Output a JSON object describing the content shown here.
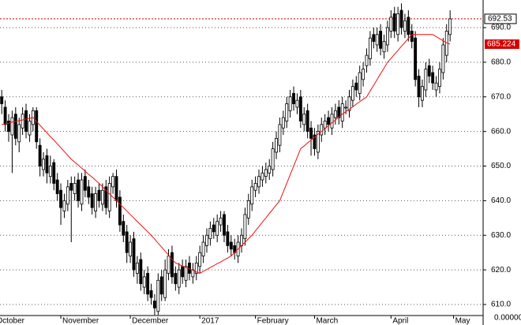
{
  "chart_data": {
    "type": "candlestick",
    "xlim": [
      -0.5,
      138.5
    ],
    "xticks": [
      {
        "value": -2,
        "label": "October"
      },
      {
        "value": 17,
        "label": "November"
      },
      {
        "value": 37,
        "label": "December"
      },
      {
        "value": 57,
        "label": "2017"
      },
      {
        "value": 73,
        "label": "February"
      },
      {
        "value": 90,
        "label": "March"
      },
      {
        "value": 112,
        "label": "April"
      },
      {
        "value": 130,
        "label": "May"
      }
    ],
    "ylim": [
      607.95,
      697.98
    ],
    "yticks": [
      {
        "value": 610,
        "label": "610.0"
      },
      {
        "value": 620,
        "label": "620.0"
      },
      {
        "value": 630,
        "label": "630.0"
      },
      {
        "value": 640,
        "label": "640.0"
      },
      {
        "value": 650,
        "label": "650.0"
      },
      {
        "value": 660,
        "label": "660.0"
      },
      {
        "value": 670,
        "label": "670.0"
      },
      {
        "value": 680,
        "label": "680.0"
      },
      {
        "value": 690,
        "label": "690.0"
      }
    ],
    "volume_ticks": [
      {
        "value": 0,
        "label": "0.00000"
      }
    ],
    "grid": true,
    "last_price_color": "#cc0000",
    "open": [
      670,
      667,
      663,
      659,
      665,
      657,
      661,
      666,
      659,
      662,
      666,
      656,
      649,
      653,
      647,
      651,
      646,
      643,
      637,
      639,
      645,
      642,
      646,
      639,
      647,
      644,
      642,
      637,
      643,
      639,
      644,
      637,
      644,
      647,
      641,
      634,
      631,
      624,
      629,
      619,
      623,
      615,
      619,
      614,
      611,
      608,
      618,
      612,
      619,
      625,
      619,
      615,
      621,
      617,
      622,
      618,
      619,
      621,
      624,
      627,
      629,
      633,
      630,
      633,
      636,
      631,
      628,
      627,
      624,
      627,
      629,
      635,
      639,
      643,
      644,
      646,
      647,
      648,
      649,
      654,
      656,
      661,
      663,
      666,
      671,
      667,
      670,
      662,
      666,
      661,
      659,
      654,
      659,
      661,
      664,
      661,
      664,
      667,
      663,
      667,
      666,
      669,
      674,
      671,
      675,
      679,
      681,
      688,
      685,
      689,
      683,
      685,
      689,
      694,
      688,
      695,
      689,
      693,
      689,
      687,
      676,
      669,
      672,
      679,
      677,
      672,
      673,
      677,
      682,
      688
    ],
    "high": [
      672,
      669,
      665,
      666,
      667,
      664,
      667,
      668,
      665,
      667,
      667,
      658,
      654,
      655,
      653,
      652,
      648,
      645,
      642,
      646,
      647,
      647,
      648,
      648,
      649,
      646,
      644,
      644,
      645,
      645,
      646,
      647,
      648,
      649,
      643,
      636,
      633,
      630,
      631,
      624,
      625,
      620,
      621,
      616,
      613,
      619,
      620,
      623,
      626,
      627,
      621,
      622,
      623,
      623,
      624,
      622,
      624,
      627,
      630,
      632,
      634,
      635,
      636,
      637,
      637,
      633,
      630,
      629,
      630,
      632,
      638,
      642,
      646,
      647,
      649,
      650,
      651,
      652,
      657,
      660,
      664,
      666,
      670,
      672,
      673,
      671,
      672,
      667,
      668,
      663,
      661,
      662,
      664,
      665,
      666,
      667,
      668,
      669,
      670,
      669,
      672,
      675,
      676,
      679,
      680,
      684,
      689,
      690,
      690,
      691,
      688,
      692,
      695,
      696,
      696,
      697,
      694,
      695,
      691,
      689,
      678,
      675,
      680,
      681,
      679,
      676,
      680,
      687,
      691,
      695
    ],
    "low": [
      665,
      660,
      657,
      648,
      656,
      654,
      659,
      658,
      657,
      660,
      655,
      647,
      647,
      645,
      645,
      643,
      640,
      633,
      635,
      637,
      628,
      640,
      638,
      637,
      641,
      639,
      636,
      635,
      638,
      637,
      636,
      635,
      642,
      638,
      631,
      628,
      622,
      622,
      618,
      616,
      614,
      613,
      611,
      610,
      607,
      607,
      611,
      611,
      617,
      616,
      614,
      613,
      616,
      615,
      617,
      616,
      617,
      619,
      622,
      625,
      627,
      629,
      628,
      631,
      628,
      625,
      624,
      623,
      622,
      625,
      627,
      633,
      637,
      641,
      642,
      644,
      645,
      646,
      647,
      652,
      654,
      659,
      661,
      664,
      666,
      665,
      661,
      660,
      658,
      653,
      653,
      652,
      657,
      659,
      660,
      659,
      662,
      662,
      661,
      665,
      664,
      667,
      670,
      669,
      673,
      677,
      679,
      684,
      683,
      682,
      681,
      683,
      687,
      687,
      686,
      688,
      687,
      686,
      684,
      673,
      667,
      667,
      670,
      674,
      672,
      670,
      671,
      675,
      680,
      686
    ],
    "close": [
      668,
      662,
      660,
      664,
      658,
      662,
      665,
      660,
      663,
      666,
      657,
      650,
      652,
      648,
      650,
      645,
      642,
      638,
      640,
      644,
      643,
      645,
      640,
      646,
      643,
      641,
      638,
      642,
      640,
      643,
      638,
      645,
      647,
      640,
      633,
      630,
      625,
      628,
      620,
      622,
      616,
      618,
      613,
      612,
      609,
      617,
      613,
      620,
      624,
      618,
      616,
      620,
      618,
      621,
      619,
      620,
      622,
      625,
      628,
      630,
      632,
      631,
      634,
      635,
      630,
      627,
      626,
      625,
      628,
      630,
      636,
      640,
      644,
      645,
      647,
      648,
      649,
      650,
      655,
      658,
      662,
      664,
      668,
      670,
      668,
      669,
      663,
      665,
      660,
      658,
      655,
      660,
      662,
      663,
      662,
      665,
      666,
      664,
      668,
      667,
      670,
      673,
      672,
      677,
      678,
      682,
      687,
      686,
      688,
      684,
      686,
      690,
      693,
      689,
      694,
      690,
      692,
      688,
      686,
      675,
      670,
      673,
      678,
      676,
      674,
      674,
      678,
      685,
      689,
      692.53
    ],
    "moving_average": {
      "color": "#ee1111",
      "values": [
        662,
        662.2,
        662.4,
        662.7,
        662.9,
        663.1,
        663.3,
        663.6,
        663.8,
        664,
        662.9,
        661.8,
        660.7,
        659.6,
        658.5,
        657.5,
        656.4,
        655.3,
        654.2,
        653.1,
        652,
        651.1,
        650.3,
        649.4,
        648.5,
        647.6,
        646.8,
        645.9,
        645,
        644,
        643,
        642,
        641,
        640,
        639,
        638,
        637,
        636,
        635,
        634,
        633,
        632,
        631,
        630,
        628.9,
        627.7,
        626.6,
        625.4,
        624.3,
        623.1,
        622,
        621.6,
        621.1,
        620.7,
        620.3,
        619.9,
        619.4,
        619,
        619.6,
        620.1,
        620.7,
        621.2,
        621.8,
        622.3,
        622.9,
        623.4,
        624,
        625,
        626,
        627,
        628,
        629,
        630,
        631.3,
        632.5,
        633.8,
        635,
        636.3,
        637.5,
        638.8,
        640,
        642.5,
        645,
        647.5,
        650,
        652.5,
        655,
        655.8,
        656.7,
        657.5,
        658.3,
        659.2,
        660,
        660.8,
        661.7,
        662.5,
        663.3,
        664.2,
        665,
        665.7,
        666.4,
        667.1,
        667.9,
        668.6,
        669.3,
        670,
        671.7,
        673.3,
        675,
        676.7,
        678.3,
        680,
        681.1,
        682.3,
        683.4,
        684.6,
        685.7,
        686.9,
        688,
        688,
        688,
        688,
        688,
        688,
        688,
        687.4,
        686.8,
        686.2,
        685.6,
        685.224
      ]
    }
  }
}
